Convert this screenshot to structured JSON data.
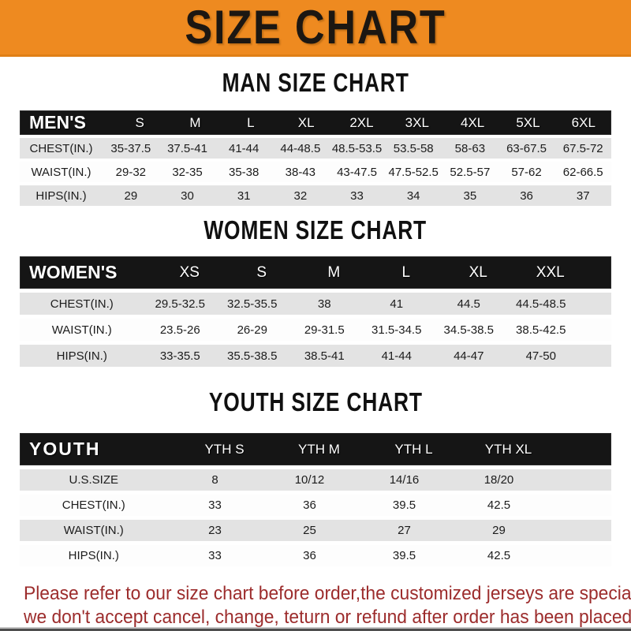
{
  "banner": {
    "title": "SIZE CHART",
    "bg_color": "#ee8a20",
    "text_color": "#1c1712"
  },
  "colors": {
    "table_header_bg": "#151515",
    "table_header_text": "#ffffff",
    "row_shade": "#e3e3e3",
    "row_plain": "#fdfdfd",
    "footer_text": "#9c2c2c"
  },
  "sections": [
    {
      "id": "men",
      "title": "MAN SIZE CHART",
      "header_label": "MEN'S",
      "columns": [
        "S",
        "M",
        "L",
        "XL",
        "2XL",
        "3XL",
        "4XL",
        "5XL",
        "6XL"
      ],
      "rows": [
        {
          "label": "CHEST(IN.)",
          "cells": [
            "35-37.5",
            "37.5-41",
            "41-44",
            "44-48.5",
            "48.5-53.5",
            "53.5-58",
            "58-63",
            "63-67.5",
            "67.5-72"
          ]
        },
        {
          "label": "WAIST(IN.)",
          "cells": [
            "29-32",
            "32-35",
            "35-38",
            "38-43",
            "43-47.5",
            "47.5-52.5",
            "52.5-57",
            "57-62",
            "62-66.5"
          ]
        },
        {
          "label": "HIPS(IN.)",
          "cells": [
            "29",
            "30",
            "31",
            "32",
            "33",
            "34",
            "35",
            "36",
            "37"
          ]
        }
      ]
    },
    {
      "id": "women",
      "title": "WOMEN SIZE CHART",
      "header_label": "WOMEN'S",
      "columns": [
        "XS",
        "S",
        "M",
        "L",
        "XL",
        "XXL"
      ],
      "rows": [
        {
          "label": "CHEST(IN.)",
          "cells": [
            "29.5-32.5",
            "32.5-35.5",
            "38",
            "41",
            "44.5",
            "44.5-48.5"
          ]
        },
        {
          "label": "WAIST(IN.)",
          "cells": [
            "23.5-26",
            "26-29",
            "29-31.5",
            "31.5-34.5",
            "34.5-38.5",
            "38.5-42.5"
          ]
        },
        {
          "label": "HIPS(IN.)",
          "cells": [
            "33-35.5",
            "35.5-38.5",
            "38.5-41",
            "41-44",
            "44-47",
            "47-50"
          ]
        }
      ]
    },
    {
      "id": "youth",
      "title": "YOUTH SIZE CHART",
      "header_label": "YOUTH",
      "columns": [
        "YTH S",
        "YTH M",
        "YTH L",
        "YTH XL"
      ],
      "rows": [
        {
          "label": "U.S.SIZE",
          "cells": [
            "8",
            "10/12",
            "14/16",
            "18/20"
          ]
        },
        {
          "label": "CHEST(IN.)",
          "cells": [
            "33",
            "36",
            "39.5",
            "42.5"
          ]
        },
        {
          "label": "WAIST(IN.)",
          "cells": [
            "23",
            "25",
            "27",
            "29"
          ]
        },
        {
          "label": "HIPS(IN.)",
          "cells": [
            "33",
            "36",
            "39.5",
            "42.5"
          ]
        }
      ]
    }
  ],
  "footer": {
    "lines": [
      "Please refer to our size chart before order,the customized jerseys are special products,",
      "we don't accept cancel, change, teturn or refund after order has been placed!"
    ]
  }
}
